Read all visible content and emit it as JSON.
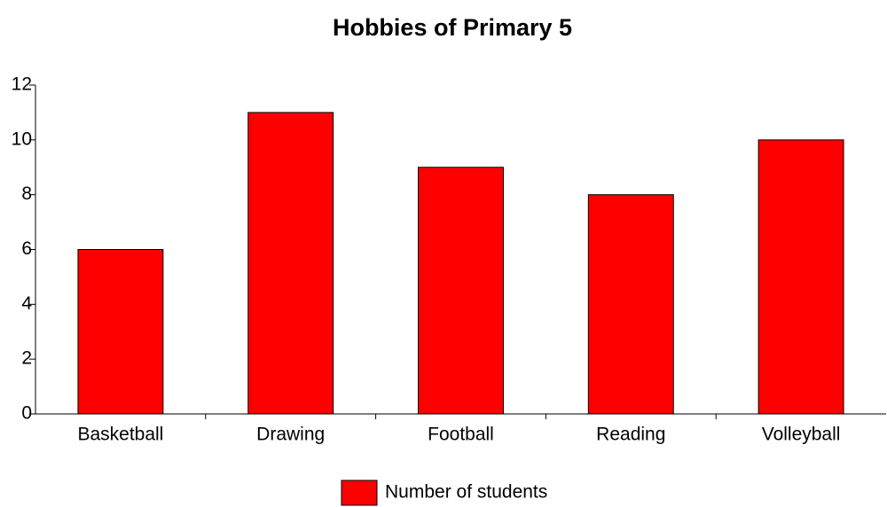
{
  "chart_data": {
    "type": "bar",
    "title": "Hobbies of Primary 5",
    "categories": [
      "Basketball",
      "Drawing",
      "Football",
      "Reading",
      "Volleyball"
    ],
    "series": [
      {
        "name": "Number of students",
        "color": "#ff0000",
        "values": [
          6,
          11,
          9,
          8,
          10
        ]
      }
    ],
    "ylim": [
      0,
      12
    ],
    "yticks": [
      0,
      2,
      4,
      6,
      8,
      10,
      12
    ],
    "grid": false,
    "legend": "bottom"
  }
}
